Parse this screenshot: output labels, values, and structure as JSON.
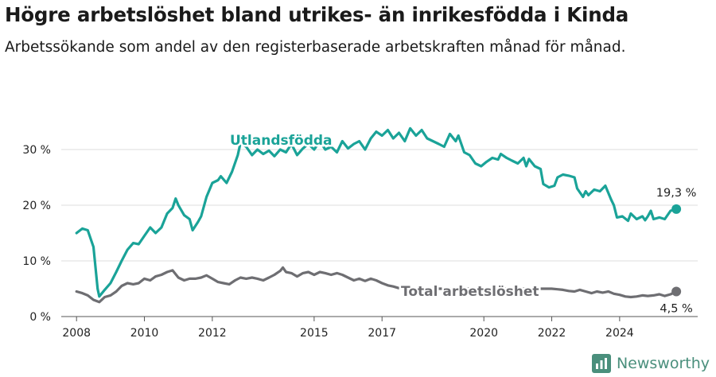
{
  "title": "Högre arbetslöshet bland utrikes- än inrikesfödda i Kinda",
  "subtitle": "Arbetssökande som andel av den registerbaserade arbetskraften månad för månad.",
  "brand": {
    "name": "Newsworthy"
  },
  "colors": {
    "foreign": "#1aa398",
    "total": "#6e6e72",
    "grid": "#dcdcdc",
    "brand": "#4a8f7c"
  },
  "chart_data": {
    "type": "line",
    "x_ticks": [
      "2008",
      "2010",
      "2012",
      "2015",
      "2017",
      "2020",
      "2022",
      "2024"
    ],
    "y_ticks": [
      "0 %",
      "10 %",
      "20 %",
      "30 %"
    ],
    "ylim": [
      0,
      35
    ],
    "grid": true,
    "series": [
      {
        "name": "Utlandsfödda",
        "end_label": "19,3 %",
        "points": [
          [
            2008.0,
            15.0
          ],
          [
            2008.17,
            15.8
          ],
          [
            2008.33,
            15.5
          ],
          [
            2008.5,
            12.5
          ],
          [
            2008.62,
            5.0
          ],
          [
            2008.67,
            3.6
          ],
          [
            2008.83,
            4.8
          ],
          [
            2009.0,
            6.0
          ],
          [
            2009.17,
            8.0
          ],
          [
            2009.33,
            10.0
          ],
          [
            2009.5,
            12.0
          ],
          [
            2009.67,
            13.2
          ],
          [
            2009.83,
            13.0
          ],
          [
            2010.0,
            14.5
          ],
          [
            2010.17,
            16.0
          ],
          [
            2010.33,
            15.0
          ],
          [
            2010.5,
            16.0
          ],
          [
            2010.67,
            18.5
          ],
          [
            2010.83,
            19.5
          ],
          [
            2010.92,
            21.2
          ],
          [
            2011.0,
            20.0
          ],
          [
            2011.17,
            18.2
          ],
          [
            2011.33,
            17.5
          ],
          [
            2011.42,
            15.5
          ],
          [
            2011.58,
            17.0
          ],
          [
            2011.67,
            18.0
          ],
          [
            2011.83,
            21.5
          ],
          [
            2012.0,
            24.0
          ],
          [
            2012.17,
            24.5
          ],
          [
            2012.25,
            25.2
          ],
          [
            2012.42,
            24.0
          ],
          [
            2012.58,
            26.0
          ],
          [
            2012.75,
            29.0
          ],
          [
            2012.83,
            31.2
          ],
          [
            2013.0,
            30.5
          ],
          [
            2013.17,
            29.0
          ],
          [
            2013.33,
            30.0
          ],
          [
            2013.5,
            29.2
          ],
          [
            2013.67,
            29.8
          ],
          [
            2013.83,
            28.8
          ],
          [
            2014.0,
            30.0
          ],
          [
            2014.17,
            29.5
          ],
          [
            2014.33,
            31.0
          ],
          [
            2014.5,
            29.0
          ],
          [
            2014.67,
            30.2
          ],
          [
            2014.83,
            31.0
          ],
          [
            2015.0,
            30.0
          ],
          [
            2015.17,
            31.5
          ],
          [
            2015.33,
            30.0
          ],
          [
            2015.5,
            30.5
          ],
          [
            2015.67,
            29.5
          ],
          [
            2015.83,
            31.5
          ],
          [
            2016.0,
            30.2
          ],
          [
            2016.17,
            31.0
          ],
          [
            2016.33,
            31.5
          ],
          [
            2016.5,
            30.0
          ],
          [
            2016.67,
            32.0
          ],
          [
            2016.83,
            33.2
          ],
          [
            2017.0,
            32.5
          ],
          [
            2017.17,
            33.5
          ],
          [
            2017.33,
            32.0
          ],
          [
            2017.5,
            33.0
          ],
          [
            2017.67,
            31.5
          ],
          [
            2017.83,
            33.8
          ],
          [
            2018.0,
            32.5
          ],
          [
            2018.17,
            33.5
          ],
          [
            2018.33,
            32.0
          ],
          [
            2018.5,
            31.5
          ],
          [
            2018.67,
            31.0
          ],
          [
            2018.83,
            30.5
          ],
          [
            2019.0,
            32.8
          ],
          [
            2019.17,
            31.5
          ],
          [
            2019.25,
            32.5
          ],
          [
            2019.42,
            29.5
          ],
          [
            2019.58,
            29.0
          ],
          [
            2019.75,
            27.5
          ],
          [
            2019.92,
            27.0
          ],
          [
            2020.08,
            27.8
          ],
          [
            2020.25,
            28.5
          ],
          [
            2020.42,
            28.2
          ],
          [
            2020.5,
            29.2
          ],
          [
            2020.67,
            28.5
          ],
          [
            2020.83,
            28.0
          ],
          [
            2021.0,
            27.5
          ],
          [
            2021.17,
            28.5
          ],
          [
            2021.25,
            27.0
          ],
          [
            2021.33,
            28.3
          ],
          [
            2021.5,
            27.0
          ],
          [
            2021.67,
            26.5
          ],
          [
            2021.75,
            23.8
          ],
          [
            2021.92,
            23.2
          ],
          [
            2022.08,
            23.5
          ],
          [
            2022.17,
            25.0
          ],
          [
            2022.33,
            25.5
          ],
          [
            2022.5,
            25.3
          ],
          [
            2022.67,
            25.0
          ],
          [
            2022.75,
            23.0
          ],
          [
            2022.92,
            21.5
          ],
          [
            2023.0,
            22.5
          ],
          [
            2023.08,
            21.8
          ],
          [
            2023.25,
            22.8
          ],
          [
            2023.42,
            22.5
          ],
          [
            2023.58,
            23.5
          ],
          [
            2023.75,
            21.0
          ],
          [
            2023.83,
            20.0
          ],
          [
            2023.92,
            17.8
          ],
          [
            2024.08,
            18.0
          ],
          [
            2024.25,
            17.2
          ],
          [
            2024.33,
            18.5
          ],
          [
            2024.5,
            17.5
          ],
          [
            2024.67,
            18.0
          ],
          [
            2024.75,
            17.3
          ],
          [
            2024.83,
            18.0
          ],
          [
            2024.92,
            19.0
          ],
          [
            2025.0,
            17.5
          ],
          [
            2025.17,
            17.8
          ],
          [
            2025.33,
            17.5
          ],
          [
            2025.5,
            19.0
          ],
          [
            2025.67,
            19.3
          ]
        ]
      },
      {
        "name": "Total arbetslöshet",
        "end_label": "4,5 %",
        "points": [
          [
            2008.0,
            4.5
          ],
          [
            2008.17,
            4.2
          ],
          [
            2008.33,
            3.8
          ],
          [
            2008.5,
            3.0
          ],
          [
            2008.67,
            2.6
          ],
          [
            2008.83,
            3.5
          ],
          [
            2009.0,
            3.8
          ],
          [
            2009.17,
            4.5
          ],
          [
            2009.33,
            5.5
          ],
          [
            2009.5,
            6.0
          ],
          [
            2009.67,
            5.8
          ],
          [
            2009.83,
            6.0
          ],
          [
            2010.0,
            6.8
          ],
          [
            2010.17,
            6.5
          ],
          [
            2010.33,
            7.2
          ],
          [
            2010.5,
            7.5
          ],
          [
            2010.67,
            8.0
          ],
          [
            2010.83,
            8.3
          ],
          [
            2011.0,
            7.0
          ],
          [
            2011.17,
            6.5
          ],
          [
            2011.33,
            6.8
          ],
          [
            2011.5,
            6.8
          ],
          [
            2011.67,
            7.0
          ],
          [
            2011.83,
            7.4
          ],
          [
            2012.0,
            6.8
          ],
          [
            2012.17,
            6.2
          ],
          [
            2012.33,
            6.0
          ],
          [
            2012.5,
            5.8
          ],
          [
            2012.67,
            6.5
          ],
          [
            2012.83,
            7.0
          ],
          [
            2013.0,
            6.8
          ],
          [
            2013.17,
            7.0
          ],
          [
            2013.33,
            6.8
          ],
          [
            2013.5,
            6.5
          ],
          [
            2013.67,
            7.0
          ],
          [
            2013.83,
            7.5
          ],
          [
            2014.0,
            8.2
          ],
          [
            2014.08,
            8.8
          ],
          [
            2014.17,
            8.0
          ],
          [
            2014.33,
            7.8
          ],
          [
            2014.5,
            7.2
          ],
          [
            2014.67,
            7.8
          ],
          [
            2014.83,
            8.0
          ],
          [
            2015.0,
            7.5
          ],
          [
            2015.17,
            8.0
          ],
          [
            2015.33,
            7.8
          ],
          [
            2015.5,
            7.5
          ],
          [
            2015.67,
            7.8
          ],
          [
            2015.83,
            7.5
          ],
          [
            2016.0,
            7.0
          ],
          [
            2016.17,
            6.5
          ],
          [
            2016.33,
            6.8
          ],
          [
            2016.5,
            6.4
          ],
          [
            2016.67,
            6.8
          ],
          [
            2016.83,
            6.5
          ],
          [
            2017.0,
            6.0
          ],
          [
            2017.17,
            5.6
          ],
          [
            2017.33,
            5.4
          ],
          [
            2017.5,
            5.1
          ],
          [
            2017.67,
            5.3
          ],
          [
            2017.83,
            5.0
          ],
          [
            2021.9,
            5.0
          ],
          [
            2022.0,
            5.0
          ],
          [
            2022.17,
            4.9
          ],
          [
            2022.33,
            4.8
          ],
          [
            2022.5,
            4.6
          ],
          [
            2022.67,
            4.5
          ],
          [
            2022.83,
            4.8
          ],
          [
            2023.0,
            4.5
          ],
          [
            2023.17,
            4.2
          ],
          [
            2023.33,
            4.5
          ],
          [
            2023.5,
            4.3
          ],
          [
            2023.67,
            4.5
          ],
          [
            2023.83,
            4.1
          ],
          [
            2024.0,
            3.9
          ],
          [
            2024.17,
            3.6
          ],
          [
            2024.33,
            3.5
          ],
          [
            2024.5,
            3.6
          ],
          [
            2024.67,
            3.8
          ],
          [
            2024.83,
            3.7
          ],
          [
            2025.0,
            3.8
          ],
          [
            2025.17,
            4.0
          ],
          [
            2025.33,
            3.7
          ],
          [
            2025.5,
            4.0
          ],
          [
            2025.67,
            4.5
          ]
        ]
      }
    ]
  }
}
